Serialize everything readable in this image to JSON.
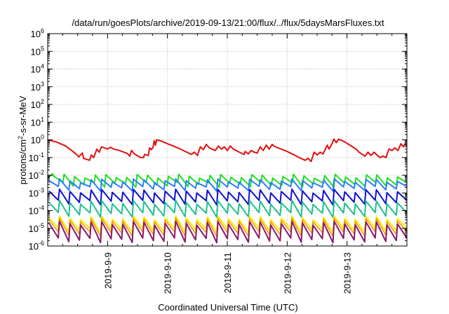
{
  "chart_data": {
    "type": "line",
    "title": "/data/run/goesPlots/archive/2019-09-13/21:00/flux/../flux/5daysMarsFluxes.txt",
    "xlabel": "Coordinated Universal Time (UTC)",
    "ylabel": {
      "prefix": "protons/cm",
      "sup": "2",
      "suffix": "-s-sr-MeV"
    },
    "yscale": "log",
    "ylim_exp": [
      -6,
      6
    ],
    "y_tick_labels": [
      {
        "exp": -6,
        "base": "10",
        "sup": "-6"
      },
      {
        "exp": -5,
        "base": "10",
        "sup": "-5"
      },
      {
        "exp": -4,
        "base": "10",
        "sup": "-4"
      },
      {
        "exp": -3,
        "base": "10",
        "sup": "-3"
      },
      {
        "exp": -2,
        "base": "10",
        "sup": "-2"
      },
      {
        "exp": -1,
        "base": "10",
        "sup": "-1"
      },
      {
        "exp": 0,
        "base": "10",
        "sup": "0"
      },
      {
        "exp": 1,
        "base": "10",
        "sup": "1"
      },
      {
        "exp": 2,
        "base": "10",
        "sup": "2"
      },
      {
        "exp": 3,
        "base": "10",
        "sup": "3"
      },
      {
        "exp": 4,
        "base": "10",
        "sup": "4"
      },
      {
        "exp": 5,
        "base": "10",
        "sup": "5"
      },
      {
        "exp": 6,
        "base": "10",
        "sup": "6"
      }
    ],
    "x_days_range": [
      0,
      6
    ],
    "x_ticks": [
      {
        "day": 1,
        "label": "2019-9-9"
      },
      {
        "day": 2,
        "label": "2019-9-10"
      },
      {
        "day": 3,
        "label": "2019-9-11"
      },
      {
        "day": 4,
        "label": "2019-9-12"
      },
      {
        "day": 5,
        "label": "2019-9-13"
      }
    ],
    "grid": true,
    "series": [
      {
        "color": "#e01010",
        "width": 2,
        "points": [
          [
            0.0,
            1.0
          ],
          [
            0.15,
            0.75
          ],
          [
            0.3,
            0.45
          ],
          [
            0.4,
            0.25
          ],
          [
            0.48,
            0.15
          ],
          [
            0.52,
            0.11
          ],
          [
            0.58,
            0.18
          ],
          [
            0.6,
            0.09
          ],
          [
            0.7,
            0.07
          ],
          [
            0.73,
            0.14
          ],
          [
            0.77,
            0.1
          ],
          [
            0.82,
            0.3
          ],
          [
            0.86,
            0.2
          ],
          [
            0.9,
            0.4
          ],
          [
            1.0,
            0.3
          ],
          [
            1.05,
            0.38
          ],
          [
            1.1,
            0.3
          ],
          [
            1.2,
            0.25
          ],
          [
            1.27,
            0.2
          ],
          [
            1.33,
            0.17
          ],
          [
            1.37,
            0.12
          ],
          [
            1.4,
            0.25
          ],
          [
            1.45,
            0.16
          ],
          [
            1.55,
            0.1
          ],
          [
            1.6,
            0.1
          ],
          [
            1.62,
            0.15
          ],
          [
            1.68,
            0.13
          ],
          [
            1.7,
            0.35
          ],
          [
            1.73,
            0.28
          ],
          [
            1.76,
            0.38
          ],
          [
            1.78,
            0.9
          ],
          [
            1.8,
            0.5
          ],
          [
            1.82,
            1.0
          ],
          [
            1.9,
            0.85
          ],
          [
            2.0,
            0.6
          ],
          [
            2.1,
            0.45
          ],
          [
            2.2,
            0.32
          ],
          [
            2.3,
            0.22
          ],
          [
            2.4,
            0.15
          ],
          [
            2.45,
            0.2
          ],
          [
            2.5,
            0.13
          ],
          [
            2.55,
            0.4
          ],
          [
            2.6,
            0.28
          ],
          [
            2.65,
            0.55
          ],
          [
            2.7,
            0.35
          ],
          [
            2.8,
            0.25
          ],
          [
            2.85,
            0.45
          ],
          [
            2.9,
            0.3
          ],
          [
            2.95,
            0.4
          ],
          [
            3.0,
            0.25
          ],
          [
            3.05,
            0.45
          ],
          [
            3.1,
            0.3
          ],
          [
            3.2,
            0.2
          ],
          [
            3.28,
            0.15
          ],
          [
            3.3,
            0.22
          ],
          [
            3.35,
            0.16
          ],
          [
            3.4,
            0.25
          ],
          [
            3.45,
            0.2
          ],
          [
            3.5,
            0.18
          ],
          [
            3.55,
            0.4
          ],
          [
            3.6,
            0.25
          ],
          [
            3.65,
            0.5
          ],
          [
            3.7,
            0.3
          ],
          [
            3.75,
            0.55
          ],
          [
            3.8,
            0.4
          ],
          [
            3.9,
            0.3
          ],
          [
            4.0,
            0.22
          ],
          [
            4.1,
            0.15
          ],
          [
            4.2,
            0.1
          ],
          [
            4.3,
            0.07
          ],
          [
            4.35,
            0.09
          ],
          [
            4.4,
            0.06
          ],
          [
            4.45,
            0.2
          ],
          [
            4.5,
            0.14
          ],
          [
            4.55,
            0.2
          ],
          [
            4.6,
            0.16
          ],
          [
            4.67,
            0.5
          ],
          [
            4.7,
            0.3
          ],
          [
            4.75,
            0.6
          ],
          [
            4.78,
            1.1
          ],
          [
            4.82,
            0.7
          ],
          [
            4.86,
            1.1
          ],
          [
            4.95,
            0.8
          ],
          [
            5.05,
            0.5
          ],
          [
            5.15,
            0.3
          ],
          [
            5.2,
            0.2
          ],
          [
            5.3,
            0.12
          ],
          [
            5.35,
            0.2
          ],
          [
            5.4,
            0.13
          ],
          [
            5.45,
            0.2
          ],
          [
            5.5,
            0.14
          ],
          [
            5.55,
            0.1
          ],
          [
            5.6,
            0.12
          ],
          [
            5.65,
            0.1
          ],
          [
            5.7,
            0.3
          ],
          [
            5.75,
            0.25
          ],
          [
            5.8,
            0.35
          ],
          [
            5.85,
            0.25
          ],
          [
            5.9,
            0.6
          ],
          [
            5.94,
            0.4
          ],
          [
            5.97,
            0.6
          ],
          [
            6.0,
            0.45
          ]
        ]
      },
      {
        "color": "#20e020",
        "width": 2,
        "sawtooth": {
          "n": 34,
          "top": 0.009,
          "bottom": 0.003,
          "lead": [
            [
              0.0,
              0.007
            ],
            [
              0.08,
              0.012
            ]
          ]
        }
      },
      {
        "color": "#2a7fff",
        "width": 2,
        "sawtooth": {
          "n": 34,
          "top": 0.005,
          "bottom": 0.0018
        }
      },
      {
        "color": "#1010d0",
        "width": 2,
        "sawtooth": {
          "n": 34,
          "top": 0.0013,
          "bottom": 0.0003
        }
      },
      {
        "color": "#20c090",
        "width": 2,
        "sawtooth": {
          "n": 34,
          "top": 0.0003,
          "bottom": 6e-05
        }
      },
      {
        "color": "#f0f000",
        "width": 2,
        "sawtooth": {
          "n": 34,
          "top": 4e-05,
          "bottom": 8e-06
        }
      },
      {
        "color": "#ff8c00",
        "width": 1.5,
        "sawtooth": {
          "n": 34,
          "top": 3e-05,
          "bottom": 5e-06
        }
      },
      {
        "color": "#8b1a6a",
        "width": 2,
        "sawtooth": {
          "n": 34,
          "top": 2e-05,
          "bottom": 2.2e-06
        }
      }
    ]
  }
}
